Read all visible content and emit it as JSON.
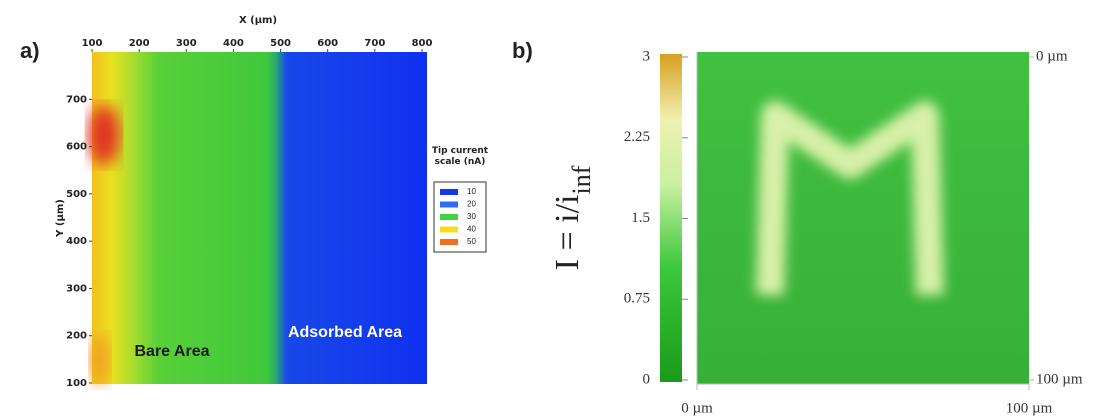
{
  "chart_data": [
    {
      "type": "heatmap",
      "panel_label": "a)",
      "xlabel": "X (µm)",
      "ylabel": "Y (µm)",
      "xlim": [
        100,
        800
      ],
      "xticks": [
        100,
        200,
        300,
        400,
        500,
        600,
        700,
        800
      ],
      "ylim": [
        100,
        800
      ],
      "yticks": [
        100,
        200,
        300,
        400,
        500,
        600,
        700
      ],
      "annotations": [
        "Bare Area",
        "Adsorbed Area"
      ],
      "legend": {
        "title": "Tip current scale (nA)",
        "entries": [
          {
            "label": 10,
            "color": "#1438e8"
          },
          {
            "label": 20,
            "color": "#2f6cf0"
          },
          {
            "label": 30,
            "color": "#3fd43f"
          },
          {
            "label": 40,
            "color": "#f0e020"
          },
          {
            "label": 50,
            "color": "#f07020"
          }
        ]
      }
    },
    {
      "type": "heatmap",
      "panel_label": "b)",
      "xlim": [
        0,
        100
      ],
      "xticks": [
        {
          "value": 0,
          "label": "0 µm"
        },
        {
          "value": 100,
          "label": "100 µm"
        }
      ],
      "ylim": [
        100,
        0
      ],
      "yticks": [
        {
          "value": 0,
          "label": "0 µm"
        },
        {
          "value": 100,
          "label": "100 µm"
        }
      ],
      "colorbar": {
        "label": "I = i/i",
        "label_subscript": "inf",
        "lim": [
          0,
          3
        ],
        "ticks": [
          0,
          0.75,
          1.5,
          2.25,
          3
        ]
      }
    }
  ]
}
